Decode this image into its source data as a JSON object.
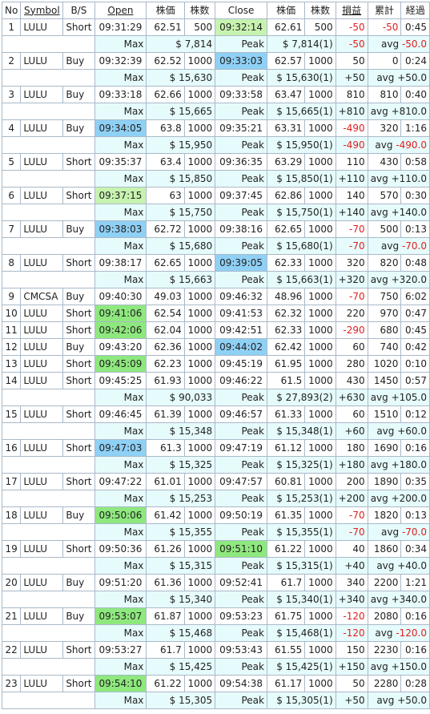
{
  "headers": {
    "no": "No",
    "symbol": "Symbol",
    "bs": "B/S",
    "open": "Open",
    "price1": "株価",
    "qty1": "株数",
    "close": "Close",
    "price2": "株価",
    "qty2": "株数",
    "pnl": "損益",
    "cum": "累計",
    "elapsed": "経過"
  },
  "labels": {
    "max": "Max",
    "peak": "Peak"
  },
  "colors": {
    "green": "#8ee87e",
    "blue": "#8fd0f5",
    "light_green": "#c7f3b0",
    "negative": "#e02020"
  },
  "trades": [
    {
      "no": "1",
      "symbol": "LULU",
      "bs": "Short",
      "open": "09:31:29",
      "op": "62.51",
      "oq": "500",
      "close": "09:32:14",
      "cp": "62.61",
      "cq": "500",
      "pnl": "-50",
      "cum": "-50",
      "el": "0:45",
      "close_hl": "light_green",
      "sub": {
        "max": "$ 7,814",
        "peak": "$ 7,814(1)",
        "pnl": "-50",
        "avg_prefix": "avg ",
        "avg": "-50.0"
      }
    },
    {
      "no": "2",
      "symbol": "LULU",
      "bs": "Buy",
      "open": "09:32:39",
      "op": "62.52",
      "oq": "1000",
      "close": "09:33:03",
      "cp": "62.57",
      "cq": "1000",
      "pnl": "50",
      "cum": "0",
      "el": "0:24",
      "close_hl": "blue",
      "sub": {
        "max": "$ 15,630",
        "peak": "$ 15,630(1)",
        "pnl": "+50",
        "avg_prefix": "avg ",
        "avg": "+50.0"
      }
    },
    {
      "no": "3",
      "symbol": "LULU",
      "bs": "Buy",
      "open": "09:33:18",
      "op": "62.66",
      "oq": "1000",
      "close": "09:33:58",
      "cp": "63.47",
      "cq": "1000",
      "pnl": "810",
      "cum": "810",
      "el": "0:40",
      "sub": {
        "max": "$ 15,665",
        "peak": "$ 15,665(1)",
        "pnl": "+810",
        "avg_prefix": "avg ",
        "avg": "+810.0"
      }
    },
    {
      "no": "4",
      "symbol": "LULU",
      "bs": "Buy",
      "open": "09:34:05",
      "op": "63.8",
      "oq": "1000",
      "close": "09:35:21",
      "cp": "63.31",
      "cq": "1000",
      "pnl": "-490",
      "cum": "320",
      "el": "1:16",
      "open_hl": "blue",
      "sub": {
        "max": "$ 15,950",
        "peak": "$ 15,950(1)",
        "pnl": "-490",
        "avg_prefix": "avg ",
        "avg": "-490.0"
      }
    },
    {
      "no": "5",
      "symbol": "LULU",
      "bs": "Short",
      "open": "09:35:37",
      "op": "63.4",
      "oq": "1000",
      "close": "09:36:35",
      "cp": "63.29",
      "cq": "1000",
      "pnl": "110",
      "cum": "430",
      "el": "0:58",
      "sub": {
        "max": "$ 15,850",
        "peak": "$ 15,850(1)",
        "pnl": "+110",
        "avg_prefix": "avg ",
        "avg": "+110.0"
      }
    },
    {
      "no": "6",
      "symbol": "LULU",
      "bs": "Short",
      "open": "09:37:15",
      "op": "63",
      "oq": "1000",
      "close": "09:37:45",
      "cp": "62.86",
      "cq": "1000",
      "pnl": "140",
      "cum": "570",
      "el": "0:30",
      "open_hl": "light_green",
      "sub": {
        "max": "$ 15,750",
        "peak": "$ 15,750(1)",
        "pnl": "+140",
        "avg_prefix": "avg ",
        "avg": "+140.0"
      }
    },
    {
      "no": "7",
      "symbol": "LULU",
      "bs": "Buy",
      "open": "09:38:03",
      "op": "62.72",
      "oq": "1000",
      "close": "09:38:16",
      "cp": "62.65",
      "cq": "1000",
      "pnl": "-70",
      "cum": "500",
      "el": "0:13",
      "open_hl": "blue",
      "sub": {
        "max": "$ 15,680",
        "peak": "$ 15,680(1)",
        "pnl": "-70",
        "avg_prefix": "avg ",
        "avg": "-70.0"
      }
    },
    {
      "no": "8",
      "symbol": "LULU",
      "bs": "Short",
      "open": "09:38:17",
      "op": "62.65",
      "oq": "1000",
      "close": "09:39:05",
      "cp": "62.33",
      "cq": "1000",
      "pnl": "320",
      "cum": "820",
      "el": "0:48",
      "close_hl": "blue",
      "sub": {
        "max": "$ 15,663",
        "peak": "$ 15,663(1)",
        "pnl": "+320",
        "avg_prefix": "avg ",
        "avg": "+320.0"
      }
    },
    {
      "no": "9",
      "symbol": "CMCSA",
      "bs": "Buy",
      "open": "09:40:30",
      "op": "49.03",
      "oq": "1000",
      "close": "09:46:32",
      "cp": "48.96",
      "cq": "1000",
      "pnl": "-70",
      "cum": "750",
      "el": "6:02"
    },
    {
      "no": "10",
      "symbol": "LULU",
      "bs": "Short",
      "open": "09:41:06",
      "op": "62.54",
      "oq": "1000",
      "close": "09:41:53",
      "cp": "62.32",
      "cq": "1000",
      "pnl": "220",
      "cum": "970",
      "el": "0:47",
      "open_hl": "green"
    },
    {
      "no": "11",
      "symbol": "LULU",
      "bs": "Short",
      "open": "09:42:06",
      "op": "62.04",
      "oq": "1000",
      "close": "09:42:51",
      "cp": "62.33",
      "cq": "1000",
      "pnl": "-290",
      "cum": "680",
      "el": "0:45",
      "open_hl": "green"
    },
    {
      "no": "12",
      "symbol": "LULU",
      "bs": "Buy",
      "open": "09:43:20",
      "op": "62.36",
      "oq": "1000",
      "close": "09:44:02",
      "cp": "62.42",
      "cq": "1000",
      "pnl": "60",
      "cum": "740",
      "el": "0:42",
      "close_hl": "blue"
    },
    {
      "no": "13",
      "symbol": "LULU",
      "bs": "Short",
      "open": "09:45:09",
      "op": "62.23",
      "oq": "1000",
      "close": "09:45:19",
      "cp": "61.95",
      "cq": "1000",
      "pnl": "280",
      "cum": "1020",
      "el": "0:10",
      "open_hl": "green"
    },
    {
      "no": "14",
      "symbol": "LULU",
      "bs": "Short",
      "open": "09:45:25",
      "op": "61.93",
      "oq": "1000",
      "close": "09:46:22",
      "cp": "61.5",
      "cq": "1000",
      "pnl": "430",
      "cum": "1450",
      "el": "0:57",
      "sub": {
        "max": "$ 90,033",
        "peak": "$ 27,893(2)",
        "pnl": "+630",
        "avg_prefix": "avg ",
        "avg": "+105.0"
      }
    },
    {
      "no": "15",
      "symbol": "LULU",
      "bs": "Short",
      "open": "09:46:45",
      "op": "61.39",
      "oq": "1000",
      "close": "09:46:57",
      "cp": "61.33",
      "cq": "1000",
      "pnl": "60",
      "cum": "1510",
      "el": "0:12",
      "sub": {
        "max": "$ 15,348",
        "peak": "$ 15,348(1)",
        "pnl": "+60",
        "avg_prefix": "avg ",
        "avg": "+60.0"
      }
    },
    {
      "no": "16",
      "symbol": "LULU",
      "bs": "Short",
      "open": "09:47:03",
      "op": "61.3",
      "oq": "1000",
      "close": "09:47:19",
      "cp": "61.12",
      "cq": "1000",
      "pnl": "180",
      "cum": "1690",
      "el": "0:16",
      "open_hl": "blue",
      "sub": {
        "max": "$ 15,325",
        "peak": "$ 15,325(1)",
        "pnl": "+180",
        "avg_prefix": "avg ",
        "avg": "+180.0"
      }
    },
    {
      "no": "17",
      "symbol": "LULU",
      "bs": "Short",
      "open": "09:47:22",
      "op": "61.01",
      "oq": "1000",
      "close": "09:47:57",
      "cp": "60.81",
      "cq": "1000",
      "pnl": "200",
      "cum": "1890",
      "el": "0:35",
      "sub": {
        "max": "$ 15,253",
        "peak": "$ 15,253(1)",
        "pnl": "+200",
        "avg_prefix": "avg ",
        "avg": "+200.0"
      }
    },
    {
      "no": "18",
      "symbol": "LULU",
      "bs": "Buy",
      "open": "09:50:06",
      "op": "61.42",
      "oq": "1000",
      "close": "09:50:19",
      "cp": "61.35",
      "cq": "1000",
      "pnl": "-70",
      "cum": "1820",
      "el": "0:13",
      "open_hl": "green",
      "sub": {
        "max": "$ 15,355",
        "peak": "$ 15,355(1)",
        "pnl": "-70",
        "avg_prefix": "avg ",
        "avg": "-70.0"
      }
    },
    {
      "no": "19",
      "symbol": "LULU",
      "bs": "Short",
      "open": "09:50:36",
      "op": "61.26",
      "oq": "1000",
      "close": "09:51:10",
      "cp": "61.22",
      "cq": "1000",
      "pnl": "40",
      "cum": "1860",
      "el": "0:34",
      "close_hl": "green",
      "sub": {
        "max": "$ 15,315",
        "peak": "$ 15,315(1)",
        "pnl": "+40",
        "avg_prefix": "avg ",
        "avg": "+40.0"
      }
    },
    {
      "no": "20",
      "symbol": "LULU",
      "bs": "Buy",
      "open": "09:51:20",
      "op": "61.36",
      "oq": "1000",
      "close": "09:52:41",
      "cp": "61.7",
      "cq": "1000",
      "pnl": "340",
      "cum": "2200",
      "el": "1:21",
      "sub": {
        "max": "$ 15,340",
        "peak": "$ 15,340(1)",
        "pnl": "+340",
        "avg_prefix": "avg ",
        "avg": "+340.0"
      }
    },
    {
      "no": "21",
      "symbol": "LULU",
      "bs": "Buy",
      "open": "09:53:07",
      "op": "61.87",
      "oq": "1000",
      "close": "09:53:23",
      "cp": "61.75",
      "cq": "1000",
      "pnl": "-120",
      "cum": "2080",
      "el": "0:16",
      "open_hl": "green",
      "sub": {
        "max": "$ 15,468",
        "peak": "$ 15,468(1)",
        "pnl": "-120",
        "avg_prefix": "avg ",
        "avg": "-120.0"
      }
    },
    {
      "no": "22",
      "symbol": "LULU",
      "bs": "Short",
      "open": "09:53:27",
      "op": "61.7",
      "oq": "1000",
      "close": "09:53:43",
      "cp": "61.55",
      "cq": "1000",
      "pnl": "150",
      "cum": "2230",
      "el": "0:16",
      "sub": {
        "max": "$ 15,425",
        "peak": "$ 15,425(1)",
        "pnl": "+150",
        "avg_prefix": "avg ",
        "avg": "+150.0"
      }
    },
    {
      "no": "23",
      "symbol": "LULU",
      "bs": "Short",
      "open": "09:54:10",
      "op": "61.22",
      "oq": "1000",
      "close": "09:54:38",
      "cp": "61.17",
      "cq": "1000",
      "pnl": "50",
      "cum": "2280",
      "el": "0:28",
      "open_hl": "green",
      "sub": {
        "max": "$ 15,305",
        "peak": "$ 15,305(1)",
        "pnl": "+50",
        "avg_prefix": "avg ",
        "avg": "+50.0"
      }
    }
  ]
}
